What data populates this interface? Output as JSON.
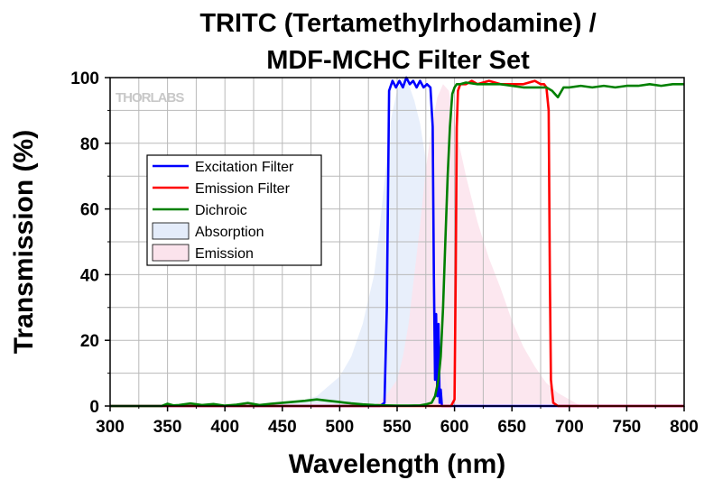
{
  "chart_data": {
    "type": "line",
    "title_line1": "TRITC (Tertamethylrhodamine) /",
    "title_line2": "MDF-MCHC Filter Set",
    "xlabel": "Wavelength (nm)",
    "ylabel": "Transmission (%)",
    "xlim": [
      300,
      800
    ],
    "ylim": [
      0,
      100
    ],
    "xticks": [
      300,
      350,
      400,
      450,
      500,
      550,
      600,
      650,
      700,
      750,
      800
    ],
    "yticks": [
      0,
      20,
      40,
      60,
      80,
      100
    ],
    "grid": true,
    "legend_placement": "left-middle",
    "logo_text": "THORLABS",
    "series": [
      {
        "name": "Excitation Filter",
        "kind": "line",
        "color": "#0000ff",
        "x": [
          300,
          535,
          539,
          541,
          543,
          546,
          549,
          552,
          555,
          558,
          561,
          564,
          567,
          570,
          573,
          576,
          579,
          581,
          582,
          583,
          584,
          585,
          586,
          587,
          588,
          589,
          592,
          800
        ],
        "y": [
          0,
          0,
          1,
          30,
          96,
          99,
          97,
          99,
          97,
          100,
          98,
          99,
          97,
          99,
          97,
          98,
          97,
          85,
          40,
          8,
          28,
          3,
          25,
          1,
          5,
          0,
          0,
          0
        ]
      },
      {
        "name": "Emission Filter",
        "kind": "line",
        "color": "#ff0000",
        "x": [
          300,
          597,
          600,
          601,
          602,
          603,
          605,
          610,
          615,
          620,
          630,
          640,
          650,
          660,
          670,
          675,
          678,
          680,
          682,
          683,
          684,
          686,
          690,
          800
        ],
        "y": [
          0,
          0,
          2,
          40,
          85,
          96,
          98,
          98,
          99,
          98,
          99,
          98,
          98,
          98,
          99,
          98,
          98,
          97,
          90,
          40,
          8,
          1,
          0,
          0
        ]
      },
      {
        "name": "Dichroic",
        "kind": "line",
        "color": "#008000",
        "x": [
          300,
          345,
          350,
          355,
          360,
          370,
          380,
          390,
          400,
          410,
          420,
          430,
          440,
          450,
          460,
          470,
          480,
          490,
          500,
          510,
          520,
          530,
          540,
          550,
          560,
          570,
          575,
          580,
          583,
          586,
          588,
          590,
          592,
          594,
          596,
          598,
          600,
          602,
          605,
          610,
          620,
          630,
          640,
          650,
          660,
          670,
          680,
          685,
          690,
          695,
          700,
          710,
          720,
          730,
          740,
          750,
          760,
          770,
          780,
          790,
          800
        ],
        "y": [
          0,
          0,
          0.7,
          0.2,
          0.3,
          0.8,
          0.3,
          0.6,
          0.1,
          0.4,
          0.9,
          0.3,
          0.7,
          1.0,
          1.3,
          1.6,
          2.0,
          1.6,
          1.2,
          0.8,
          0.5,
          0.3,
          0.2,
          0.1,
          0.1,
          0.2,
          0.5,
          1.0,
          3.0,
          8.0,
          15.0,
          30.0,
          50.0,
          70.0,
          85.0,
          95.0,
          97.0,
          98.0,
          98.0,
          98.5,
          98.0,
          98.0,
          98.0,
          97.5,
          97.0,
          97.0,
          97.0,
          96.0,
          94.0,
          97.0,
          97.0,
          97.5,
          97.0,
          97.5,
          97.0,
          97.5,
          97.5,
          98.0,
          97.5,
          98.0,
          98.0
        ]
      },
      {
        "name": "Absorption",
        "kind": "area",
        "color": "#e4ecfa",
        "x": [
          300,
          430,
          460,
          480,
          500,
          510,
          520,
          530,
          535,
          540,
          545,
          550,
          555,
          560,
          565,
          570,
          575,
          580,
          585,
          590,
          595,
          600,
          800
        ],
        "y": [
          0,
          0,
          1,
          3,
          9,
          15,
          25,
          40,
          55,
          72,
          88,
          96,
          100,
          98,
          93,
          86,
          75,
          55,
          30,
          12,
          4,
          0,
          0
        ]
      },
      {
        "name": "Emission",
        "kind": "area",
        "color": "#fbe3ec",
        "x": [
          300,
          530,
          540,
          550,
          555,
          560,
          565,
          570,
          575,
          580,
          585,
          590,
          595,
          600,
          610,
          620,
          630,
          640,
          650,
          660,
          670,
          680,
          690,
          700,
          710,
          800
        ],
        "y": [
          0,
          0,
          3,
          8,
          15,
          25,
          40,
          55,
          72,
          85,
          94,
          98,
          96,
          86,
          70,
          56,
          45,
          36,
          26,
          18,
          12,
          7,
          4,
          2,
          0,
          0
        ]
      }
    ]
  }
}
